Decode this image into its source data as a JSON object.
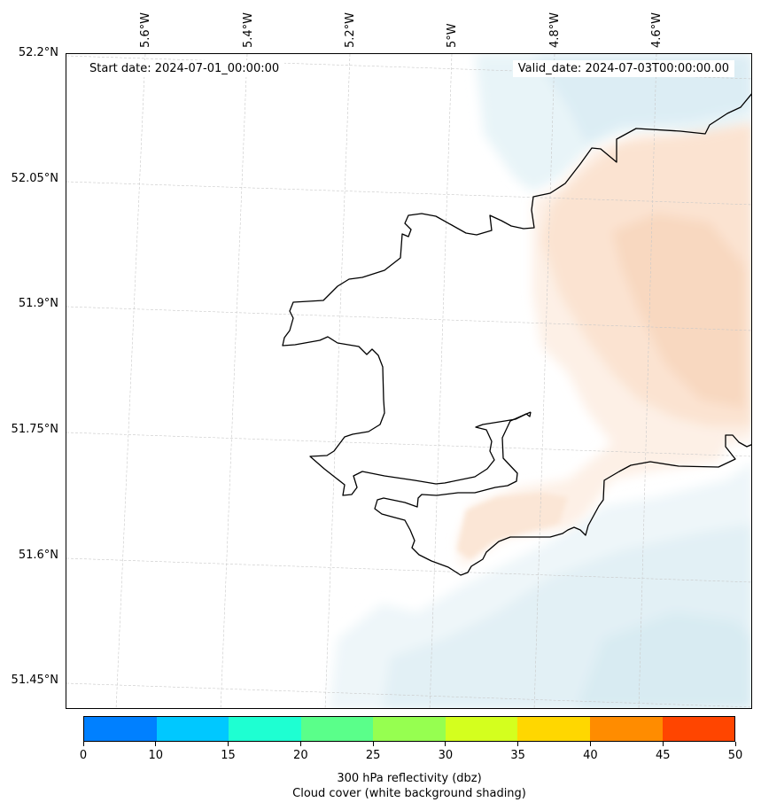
{
  "map": {
    "start_date": "Start date: 2024-07-01_00:00:00",
    "valid_date": "Valid_date: 2024-07-03T00:00:00.00",
    "lon_labels": [
      "5.6°W",
      "5.4°W",
      "5.2°W",
      "5°W",
      "4.8°W",
      "4.6°W"
    ],
    "lat_labels": [
      "52.2°N",
      "52.05°N",
      "51.9°N",
      "51.75°N",
      "51.6°N",
      "51.45°N"
    ]
  },
  "colorbar": {
    "ticks": [
      "0",
      "10",
      "15",
      "20",
      "25",
      "30",
      "35",
      "40",
      "45",
      "50"
    ],
    "colors": [
      "#0080ff",
      "#00c8ff",
      "#1effd2",
      "#5aff8a",
      "#96ff50",
      "#d4ff1e",
      "#ffd700",
      "#ff8c00",
      "#ff4500"
    ],
    "caption_line1": "300 hPa reflectivity (dbz)",
    "caption_line2": "Cloud cover (white background shading)"
  },
  "shading": {
    "cloud_cool": "#d6eaf2",
    "cloud_warm": "#fbdcc4",
    "coastline": "#000000"
  }
}
